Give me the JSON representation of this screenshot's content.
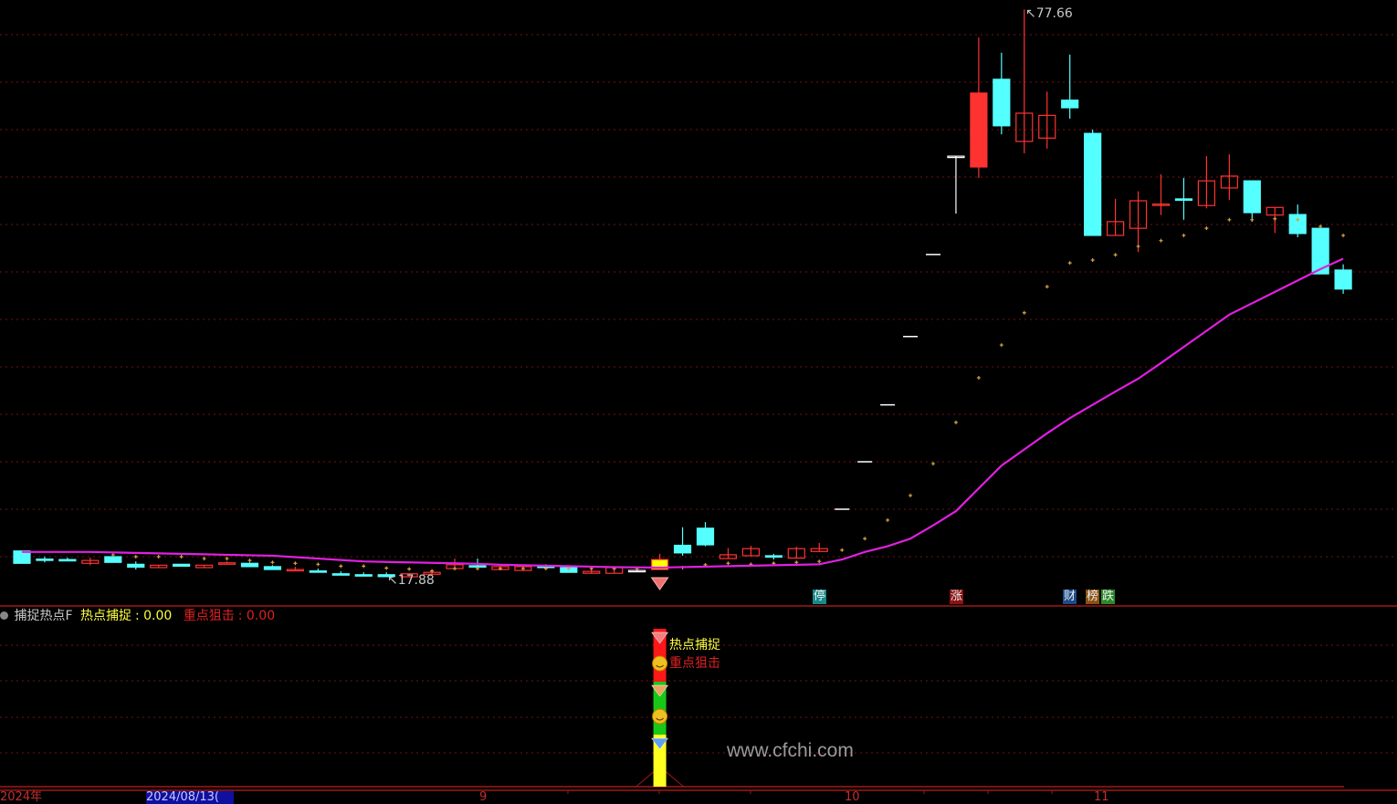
{
  "chart_data": {
    "type": "candlestick",
    "price_grid": [
      20,
      25,
      30,
      35,
      40,
      45,
      50,
      55,
      60,
      65,
      70,
      75
    ],
    "candles": [
      [
        20.6,
        20.6,
        19.3,
        19.3
      ],
      [
        19.75,
        20.0,
        19.4,
        19.65
      ],
      [
        19.7,
        19.9,
        19.6,
        19.6
      ],
      [
        19.3,
        19.9,
        19.1,
        19.6
      ],
      [
        20.0,
        20.1,
        19.4,
        19.4
      ],
      [
        19.2,
        19.5,
        18.65,
        18.9
      ],
      [
        18.85,
        19.1,
        18.85,
        19.1
      ],
      [
        19.2,
        19.2,
        19.0,
        19.0
      ],
      [
        18.85,
        19.1,
        18.85,
        19.1
      ],
      [
        19.3,
        19.5,
        19.3,
        19.35
      ],
      [
        19.3,
        19.4,
        18.95,
        18.95
      ],
      [
        18.95,
        19.1,
        18.6,
        18.65
      ],
      [
        18.55,
        18.95,
        18.55,
        18.65
      ],
      [
        18.5,
        18.75,
        18.4,
        18.4
      ],
      [
        18.2,
        18.45,
        18.05,
        18.15
      ],
      [
        18.1,
        18.35,
        18.0,
        18.05
      ],
      [
        18.1,
        18.35,
        17.88,
        17.9
      ],
      [
        17.88,
        18.25,
        17.88,
        18.2
      ],
      [
        18.15,
        18.35,
        18.15,
        18.35
      ],
      [
        18.75,
        19.8,
        18.75,
        19.15
      ],
      [
        19.05,
        19.8,
        18.95,
        18.95
      ],
      [
        18.65,
        19.1,
        18.65,
        18.95
      ],
      [
        18.55,
        18.95,
        18.55,
        18.95
      ],
      [
        19.0,
        19.2,
        18.85,
        18.85
      ],
      [
        18.85,
        18.85,
        18.35,
        18.35
      ],
      [
        18.25,
        18.75,
        18.25,
        18.45
      ],
      [
        18.25,
        18.85,
        18.25,
        18.85
      ],
      [
        18.55,
        18.7,
        18.4,
        18.55
      ],
      [
        18.65,
        20.3,
        18.6,
        19.7
      ],
      [
        21.2,
        23.1,
        20.1,
        20.4
      ],
      [
        23.0,
        23.65,
        21.1,
        21.25
      ],
      [
        19.8,
        20.9,
        19.8,
        20.2
      ],
      [
        20.1,
        21.15,
        20.1,
        20.85
      ],
      [
        20.1,
        20.3,
        19.7,
        20.0
      ],
      [
        19.85,
        21.05,
        19.85,
        20.85
      ],
      [
        20.55,
        21.45,
        20.55,
        20.85
      ],
      [
        25.0,
        25.0,
        25.0,
        25.0
      ],
      [
        30.0,
        30.0,
        30.0,
        30.0
      ],
      [
        36.0,
        36.0,
        36.0,
        36.0
      ],
      [
        43.2,
        43.2,
        43.2,
        43.2
      ],
      [
        51.84,
        51.84,
        51.84,
        51.84
      ],
      [
        62.2,
        62.2,
        56.15,
        62.2
      ],
      [
        61.06,
        74.7,
        59.9,
        68.85
      ],
      [
        70.3,
        73.1,
        64.5,
        65.4
      ],
      [
        63.75,
        77.66,
        62.5,
        66.73
      ],
      [
        64.1,
        69.0,
        63.0,
        66.5
      ],
      [
        68.1,
        72.9,
        66.15,
        67.3
      ],
      [
        64.6,
        65.0,
        53.85,
        53.85
      ],
      [
        53.85,
        57.7,
        53.85,
        55.3
      ],
      [
        54.6,
        58.5,
        52.1,
        57.5
      ],
      [
        57.05,
        60.3,
        56.0,
        57.15
      ],
      [
        57.7,
        59.9,
        55.5,
        57.6
      ],
      [
        57.0,
        62.2,
        56.7,
        59.6
      ],
      [
        58.85,
        62.4,
        57.6,
        60.1
      ],
      [
        59.6,
        59.6,
        55.3,
        56.25
      ],
      [
        56.0,
        56.8,
        54.1,
        56.8
      ],
      [
        56.05,
        57.1,
        53.65,
        54.05
      ],
      [
        54.6,
        54.8,
        49.8,
        49.8
      ],
      [
        50.2,
        50.8,
        47.7,
        48.2
      ]
    ],
    "candle_format": "open,high,low,close",
    "signal_candle_index": 28,
    "ma": [
      20.5,
      20.5,
      20.5,
      20.5,
      20.45,
      20.4,
      20.35,
      20.3,
      20.25,
      20.2,
      20.15,
      20.1,
      19.95,
      19.8,
      19.65,
      19.5,
      19.45,
      19.4,
      19.35,
      19.3,
      19.25,
      19.15,
      19.1,
      19.05,
      19.0,
      18.95,
      18.9,
      18.87,
      18.85,
      18.9,
      18.95,
      19.0,
      19.05,
      19.1,
      19.15,
      19.2,
      19.7,
      20.5,
      21.1,
      21.9,
      23.3,
      24.8,
      27.2,
      29.6,
      31.3,
      33.0,
      34.6,
      36.0,
      37.4,
      38.75,
      40.4,
      42.1,
      43.8,
      45.5,
      46.7,
      47.9,
      49.1,
      50.3,
      51.4
    ],
    "dots": [
      null,
      null,
      null,
      null,
      20.2,
      20.0,
      20.0,
      20.0,
      19.8,
      19.8,
      19.6,
      19.4,
      19.3,
      19.2,
      19.0,
      19.0,
      18.8,
      18.7,
      18.5,
      18.75,
      18.75,
      18.75,
      18.75,
      18.75,
      18.75,
      18.75,
      18.75,
      18.75,
      null,
      18.85,
      19.15,
      19.3,
      19.2,
      19.3,
      19.4,
      19.5,
      20.7,
      21.9,
      23.85,
      26.45,
      29.8,
      34.15,
      38.85,
      42.3,
      45.7,
      48.45,
      50.95,
      51.25,
      51.8,
      52.7,
      53.3,
      53.85,
      54.6,
      55.5,
      55.5,
      55.6,
      55.5,
      54.8,
      53.85
    ],
    "high_label": "77.66",
    "low_label": "17.88",
    "colors": {
      "up": "#ff3232",
      "down": "#54ffff",
      "ma": "#e020e0",
      "dots": "#d8a040",
      "limit": "#ffffff",
      "signal": "#ffff00",
      "grid": "#7a1010"
    }
  },
  "tags": [
    {
      "text": "停",
      "bg": "#168a8a"
    },
    {
      "text": "涨",
      "bg": "#8a1414"
    },
    {
      "text": "财",
      "bg": "#1c4a8a"
    },
    {
      "text": "榜",
      "bg": "#8a5010"
    },
    {
      "text": "跌",
      "bg": "#2a8a2a"
    }
  ],
  "indicator": {
    "name": "捕捉热点F",
    "series1_label": "热点捕捉",
    "series1_value": ": 0.00",
    "series2_label": "重点狙击",
    "series2_value": ": 0.00",
    "label1": "热点捕捉",
    "label2": "重点狙击"
  },
  "watermark": "www.cfchi.com",
  "axis": {
    "year": "2024年",
    "cursor_date": "2024/08/13(",
    "months": [
      "9",
      "10",
      "11"
    ]
  }
}
